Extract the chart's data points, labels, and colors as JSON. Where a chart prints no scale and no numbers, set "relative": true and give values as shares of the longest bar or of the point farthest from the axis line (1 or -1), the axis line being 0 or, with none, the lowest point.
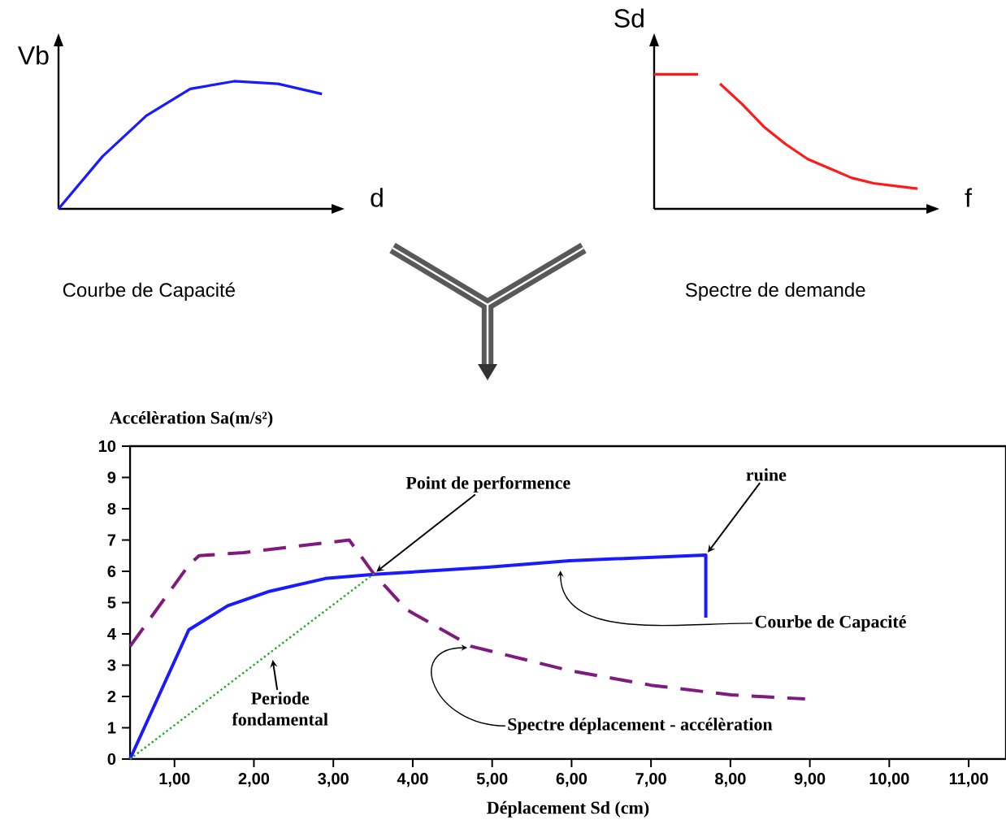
{
  "chart_data": [
    {
      "type": "line",
      "relative": true,
      "xlabel": "d",
      "ylabel": "Vb",
      "annotations": [
        "Courbe de Capacité"
      ],
      "categories": [
        null,
        null,
        null,
        null,
        null,
        null,
        null
      ],
      "series": [
        {
          "color": "#1a1aff",
          "values": [
            0,
            0.41,
            0.73,
            0.94,
            1,
            0.98,
            0.9
          ]
        }
      ]
    },
    {
      "type": "line",
      "relative": true,
      "xlabel": "f",
      "ylabel": "Sd",
      "annotations": [
        "Spectre de demande"
      ],
      "categories": [
        null,
        null,
        null,
        null,
        null,
        null,
        null,
        null,
        null,
        null,
        null,
        null,
        null
      ],
      "series": [
        {
          "color": "#ff1a1a",
          "values": [
            1,
            1,
            1,
            null,
            null,
            null,
            null,
            null,
            null,
            null,
            null,
            null,
            null
          ]
        },
        {
          "color": "#ff1a1a",
          "values": [
            null,
            null,
            null,
            0.93,
            0.78,
            0.61,
            0.48,
            0.37,
            0.3,
            0.23,
            0.19,
            0.17,
            0.15
          ]
        }
      ]
    },
    {
      "type": "line",
      "xlabel": "Déplacement Sd (cm)",
      "ylabel": "Accélèration Sa(m/s²)",
      "xlim": [
        0.44,
        11.47
      ],
      "ylim": [
        0,
        10
      ],
      "xticks": [
        {
          "value": 1,
          "label": "1,00"
        },
        {
          "value": 2,
          "label": "2,00"
        },
        {
          "value": 3,
          "label": "3,00"
        },
        {
          "value": 4,
          "label": "4,00"
        },
        {
          "value": 5,
          "label": "5,00"
        },
        {
          "value": 6,
          "label": "6,00"
        },
        {
          "value": 7,
          "label": "7,00"
        },
        {
          "value": 8,
          "label": "8,00"
        },
        {
          "value": 9,
          "label": "9,00"
        },
        {
          "value": 10,
          "label": "10,00"
        },
        {
          "value": 11,
          "label": "11,00"
        }
      ],
      "yticks": [
        0,
        1,
        2,
        3,
        4,
        5,
        6,
        7,
        8,
        9,
        10
      ],
      "annotations": [
        "Point de performence",
        "ruine",
        "Courbe de Capacité",
        "Periode fondamental",
        "Spectre déplacement - accélèration"
      ],
      "series": [
        {
          "color": "#1a1aff",
          "line_style": "solid",
          "x": [
            0.44,
            1.18,
            1.67,
            2.18,
            2.9,
            3.51,
            4.94,
            5.97,
            7.69,
            7.69
          ],
          "values": [
            0,
            4.13,
            4.9,
            5.35,
            5.77,
            5.9,
            6.13,
            6.34,
            6.52,
            4.52
          ]
        },
        {
          "color": "#7f1a7f",
          "line_style": "dashed",
          "x": [
            0.44,
            1.18,
            1.31,
            1.87,
            3.2,
            3.51,
            3.92,
            4.74,
            5.97,
            7.0,
            8.01,
            8.94
          ],
          "values": [
            3.6,
            6.2,
            6.5,
            6.6,
            7.0,
            5.92,
            4.78,
            3.6,
            2.83,
            2.36,
            2.05,
            1.92
          ]
        },
        {
          "color": "#22aa22",
          "line_style": "dotted",
          "x": [
            0.44,
            3.51
          ],
          "values": [
            0,
            5.92
          ]
        }
      ]
    }
  ]
}
